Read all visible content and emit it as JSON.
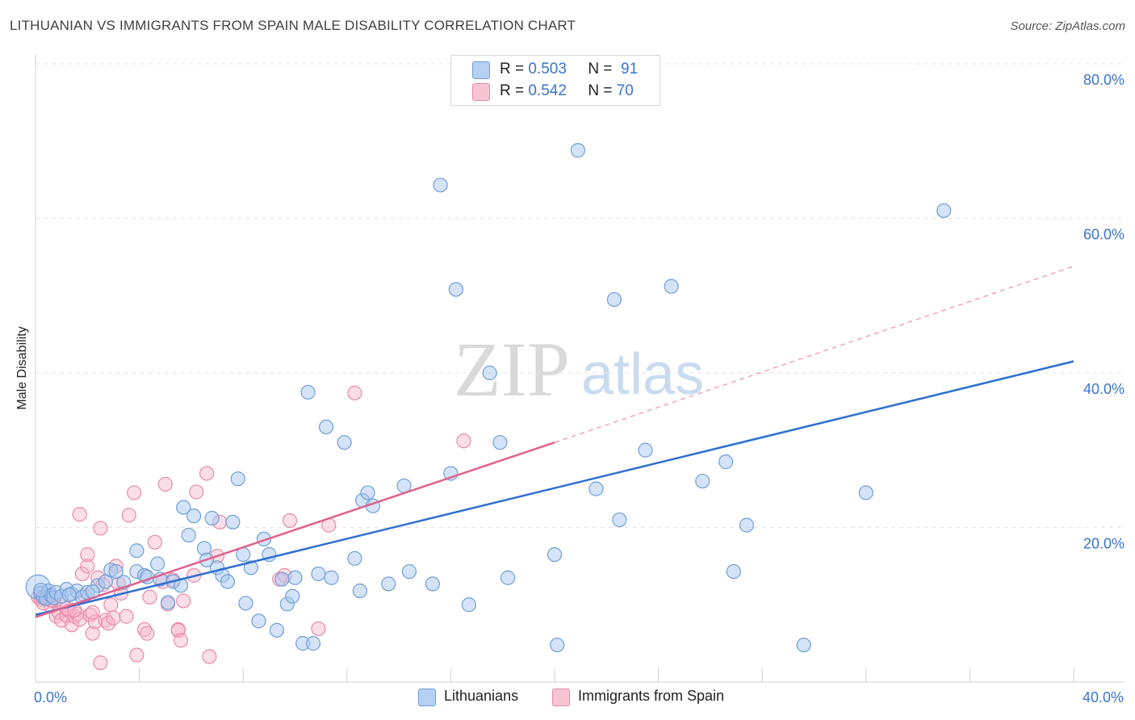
{
  "title": "LITHUANIAN VS IMMIGRANTS FROM SPAIN MALE DISABILITY CORRELATION CHART",
  "source": "Source: ZipAtlas.com",
  "watermark": {
    "zip": "ZIP",
    "atlas": "atlas"
  },
  "legend": {
    "r_label": "R =",
    "n_label": "N =",
    "series": [
      {
        "r": "0.503",
        "n": "91"
      },
      {
        "r": "0.542",
        "n": "70"
      }
    ]
  },
  "bottom_legend": [
    "Lithuanians",
    "Immigrants from Spain"
  ],
  "chart_data": {
    "type": "scatter",
    "title": "LITHUANIAN VS IMMIGRANTS FROM SPAIN MALE DISABILITY CORRELATION CHART",
    "xlabel": "",
    "ylabel": "Male Disability",
    "xlim": [
      0,
      40
    ],
    "ylim": [
      0,
      80
    ],
    "x_tick_labels": [
      "0.0%",
      "40.0%"
    ],
    "y_ticks": [
      20,
      40,
      60,
      80
    ],
    "y_tick_labels": [
      "20.0%",
      "40.0%",
      "60.0%",
      "80.0%"
    ],
    "colors": {
      "lithuanians_fill": "#a9c8f0",
      "lithuanians_edge": "#6f9fd8",
      "lithuanians_line": "#2e6fd1",
      "spain_fill": "#f6b6c9",
      "spain_edge": "#e88aa8",
      "spain_line": "#e0608c",
      "tick_text": "#3a74c9"
    },
    "series": [
      {
        "name": "Lithuanians",
        "r": 0.503,
        "n": 91,
        "trend": {
          "x": [
            0,
            40
          ],
          "y": [
            8.7,
            41.5
          ]
        },
        "points": [
          [
            0.1,
            12.3
          ],
          [
            0.2,
            11.5
          ],
          [
            0.3,
            11.0
          ],
          [
            0.4,
            10.8
          ],
          [
            0.5,
            11.8
          ],
          [
            0.6,
            11.2
          ],
          [
            0.7,
            10.9
          ],
          [
            0.8,
            11.6
          ],
          [
            1.0,
            11.1
          ],
          [
            1.2,
            12.0
          ],
          [
            1.4,
            11.4
          ],
          [
            1.6,
            11.8
          ],
          [
            1.8,
            11.0
          ],
          [
            2.0,
            11.6
          ],
          [
            2.4,
            12.5
          ],
          [
            2.7,
            13.0
          ],
          [
            2.9,
            14.5
          ],
          [
            3.1,
            14.3
          ],
          [
            3.4,
            12.9
          ],
          [
            3.9,
            14.3
          ],
          [
            4.2,
            13.8
          ],
          [
            4.3,
            13.6
          ],
          [
            3.9,
            17.0
          ],
          [
            4.7,
            15.3
          ],
          [
            4.8,
            13.3
          ],
          [
            5.1,
            10.3
          ],
          [
            5.3,
            13.0
          ],
          [
            5.6,
            12.5
          ],
          [
            5.7,
            22.6
          ],
          [
            5.9,
            19.0
          ],
          [
            6.1,
            21.5
          ],
          [
            6.5,
            17.3
          ],
          [
            6.6,
            15.8
          ],
          [
            6.8,
            21.2
          ],
          [
            7.0,
            14.8
          ],
          [
            7.2,
            13.8
          ],
          [
            7.4,
            13.0
          ],
          [
            7.6,
            20.7
          ],
          [
            7.8,
            26.3
          ],
          [
            8.0,
            16.5
          ],
          [
            8.1,
            10.2
          ],
          [
            8.3,
            14.8
          ],
          [
            8.6,
            7.9
          ],
          [
            8.8,
            18.5
          ],
          [
            9.0,
            16.5
          ],
          [
            9.3,
            6.7
          ],
          [
            9.5,
            13.3
          ],
          [
            9.7,
            10.1
          ],
          [
            9.9,
            11.1
          ],
          [
            10.0,
            13.5
          ],
          [
            10.3,
            5.0
          ],
          [
            10.5,
            37.5
          ],
          [
            10.7,
            5.0
          ],
          [
            10.9,
            14.0
          ],
          [
            11.2,
            33.0
          ],
          [
            11.4,
            13.5
          ],
          [
            11.9,
            31.0
          ],
          [
            12.3,
            16.0
          ],
          [
            12.5,
            11.8
          ],
          [
            12.6,
            23.5
          ],
          [
            12.8,
            24.5
          ],
          [
            13.0,
            22.8
          ],
          [
            13.6,
            12.7
          ],
          [
            14.2,
            25.4
          ],
          [
            14.4,
            14.3
          ],
          [
            15.3,
            12.7
          ],
          [
            15.6,
            64.3
          ],
          [
            16.0,
            27.0
          ],
          [
            16.2,
            50.8
          ],
          [
            16.7,
            10.0
          ],
          [
            17.5,
            40.0
          ],
          [
            17.9,
            31.0
          ],
          [
            18.2,
            13.5
          ],
          [
            20.0,
            16.5
          ],
          [
            20.1,
            4.8
          ],
          [
            20.9,
            68.8
          ],
          [
            21.6,
            25.0
          ],
          [
            22.3,
            49.5
          ],
          [
            22.5,
            21.0
          ],
          [
            23.5,
            30.0
          ],
          [
            24.5,
            51.2
          ],
          [
            25.7,
            26.0
          ],
          [
            26.6,
            28.5
          ],
          [
            26.9,
            14.3
          ],
          [
            27.4,
            20.3
          ],
          [
            29.6,
            4.8
          ],
          [
            32.0,
            24.5
          ],
          [
            35.0,
            61.0
          ],
          [
            0.2,
            11.9
          ],
          [
            1.3,
            11.3
          ],
          [
            2.2,
            11.7
          ]
        ]
      },
      {
        "name": "Immigrants from Spain",
        "r": 0.542,
        "n": 70,
        "trend": {
          "x": [
            0,
            20
          ],
          "y": [
            8.4,
            31.0
          ]
        },
        "trend_dashed": {
          "x": [
            20,
            40
          ],
          "y": [
            31.0,
            53.8
          ]
        },
        "points": [
          [
            0.1,
            11.0
          ],
          [
            0.2,
            10.7
          ],
          [
            0.3,
            10.2
          ],
          [
            0.4,
            11.3
          ],
          [
            0.5,
            10.8
          ],
          [
            0.6,
            9.8
          ],
          [
            0.7,
            10.5
          ],
          [
            0.8,
            8.5
          ],
          [
            0.9,
            9.0
          ],
          [
            1.0,
            8.0
          ],
          [
            1.1,
            10.0
          ],
          [
            1.2,
            8.6
          ],
          [
            1.3,
            9.2
          ],
          [
            1.4,
            7.4
          ],
          [
            1.5,
            8.5
          ],
          [
            1.6,
            8.8
          ],
          [
            1.7,
            8.1
          ],
          [
            1.8,
            14.0
          ],
          [
            1.7,
            21.7
          ],
          [
            1.9,
            11.2
          ],
          [
            2.0,
            15.0
          ],
          [
            2.0,
            16.5
          ],
          [
            2.1,
            8.7
          ],
          [
            2.2,
            6.3
          ],
          [
            2.3,
            7.8
          ],
          [
            2.4,
            13.5
          ],
          [
            2.5,
            19.9
          ],
          [
            2.5,
            2.5
          ],
          [
            2.6,
            12.6
          ],
          [
            2.7,
            8.0
          ],
          [
            2.8,
            7.6
          ],
          [
            2.9,
            10.0
          ],
          [
            3.0,
            8.3
          ],
          [
            3.1,
            15.0
          ],
          [
            3.2,
            12.7
          ],
          [
            3.3,
            11.5
          ],
          [
            3.5,
            8.5
          ],
          [
            3.6,
            21.6
          ],
          [
            3.8,
            24.5
          ],
          [
            3.9,
            3.5
          ],
          [
            4.2,
            6.8
          ],
          [
            4.3,
            6.3
          ],
          [
            4.4,
            11.0
          ],
          [
            4.6,
            18.1
          ],
          [
            4.9,
            13.0
          ],
          [
            5.0,
            25.6
          ],
          [
            5.1,
            10.1
          ],
          [
            5.3,
            13.2
          ],
          [
            5.5,
            6.8
          ],
          [
            5.5,
            6.7
          ],
          [
            5.6,
            5.4
          ],
          [
            5.7,
            10.5
          ],
          [
            6.1,
            13.8
          ],
          [
            6.2,
            24.6
          ],
          [
            6.6,
            27.0
          ],
          [
            6.7,
            3.3
          ],
          [
            7.0,
            16.3
          ],
          [
            7.1,
            20.7
          ],
          [
            9.4,
            13.3
          ],
          [
            9.6,
            13.8
          ],
          [
            9.8,
            20.9
          ],
          [
            10.9,
            6.9
          ],
          [
            11.3,
            20.3
          ],
          [
            12.3,
            37.4
          ],
          [
            16.5,
            31.2
          ],
          [
            0.3,
            10.9
          ],
          [
            0.6,
            10.6
          ],
          [
            1.2,
            9.5
          ],
          [
            2.2,
            9.0
          ],
          [
            1.5,
            9.3
          ]
        ]
      }
    ]
  }
}
